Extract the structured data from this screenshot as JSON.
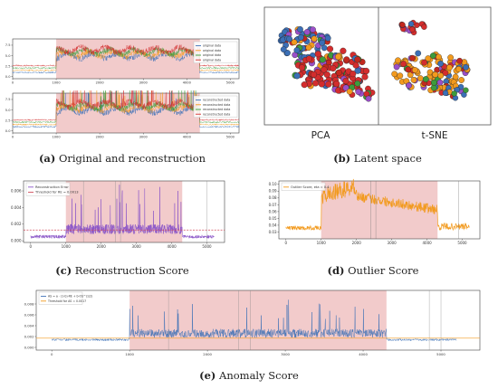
{
  "captions": {
    "a": {
      "letter": "(a)",
      "text": "Original and reconstruction"
    },
    "b": {
      "letter": "(b)",
      "text": "Latent space"
    },
    "c": {
      "letter": "(c)",
      "text": "Reconstruction Score"
    },
    "d": {
      "letter": "(d)",
      "text": "Outlier Score"
    },
    "e": {
      "letter": "(e)",
      "text": "Anomaly Score"
    }
  },
  "colors": {
    "shade": "#e8a0a0",
    "blue": "#3b6fb6",
    "orange": "#f29a1e",
    "green": "#3c9b3c",
    "red": "#d32d2d",
    "purple": "#8a55c8",
    "threshold": "#d04a5a"
  },
  "chart_data": [
    {
      "id": "a-top",
      "type": "line",
      "xlim": [
        0,
        5200
      ],
      "ylim": [
        -0.5,
        9
      ],
      "x_ticks": [
        0,
        1000,
        2000,
        3000,
        4000,
        5000
      ],
      "x_tick_labels": [
        "0",
        "1000",
        "2000",
        "3000",
        "4000",
        "5000"
      ],
      "y_ticks": [
        0,
        2.5,
        5,
        7.5
      ],
      "y_tick_labels": [
        "0.0",
        "2.5",
        "5.0",
        "7.5"
      ],
      "anomaly_span": [
        1000,
        4300
      ],
      "legend": [
        "original data",
        "original data",
        "original data",
        "original data"
      ],
      "legend_position": "top-right"
    },
    {
      "id": "a-bottom",
      "type": "line",
      "xlim": [
        0,
        5200
      ],
      "ylim": [
        -0.5,
        9
      ],
      "x_ticks": [
        0,
        1000,
        2000,
        3000,
        4000,
        5000
      ],
      "x_tick_labels": [
        "0",
        "1000",
        "2000",
        "3000",
        "4000",
        "5000"
      ],
      "y_ticks": [
        0,
        2.5,
        5,
        7.5
      ],
      "y_tick_labels": [
        "0.0",
        "2.5",
        "5.0",
        "7.5"
      ],
      "anomaly_span": [
        1000,
        4300
      ],
      "legend": [
        "reconstructed data",
        "reconstructed data",
        "reconstructed data",
        "reconstructed data"
      ],
      "legend_position": "top-right"
    },
    {
      "id": "b",
      "type": "scatter",
      "subplots": [
        "PCA",
        "t-SNE"
      ]
    },
    {
      "id": "c",
      "type": "line",
      "xlim": [
        -200,
        5500
      ],
      "ylim": [
        -0.0002,
        0.0072
      ],
      "x_ticks": [
        0,
        1000,
        2000,
        3000,
        4000,
        5000
      ],
      "x_tick_labels": [
        "0",
        "1000",
        "2000",
        "3000",
        "4000",
        "5000"
      ],
      "y_ticks": [
        0,
        0.002,
        0.004,
        0.006
      ],
      "y_tick_labels": [
        "0.000",
        "0.002",
        "0.004",
        "0.006"
      ],
      "threshold": 0.0013,
      "anomaly_span": [
        1000,
        4300
      ],
      "legend": [
        "Reconstruction Error",
        "Threshold for RE = 0.0013"
      ],
      "legend_position": "top-left"
    },
    {
      "id": "d",
      "type": "line",
      "xlim": [
        -200,
        5500
      ],
      "ylim": [
        0.02,
        0.105
      ],
      "x_ticks": [
        0,
        1000,
        2000,
        3000,
        4000,
        5000
      ],
      "x_tick_labels": [
        "0",
        "1000",
        "2000",
        "3000",
        "4000",
        "5000"
      ],
      "y_ticks": [
        0.03,
        0.04,
        0.05,
        0.06,
        0.07,
        0.08,
        0.09,
        0.1
      ],
      "y_tick_labels": [
        "0.03",
        "0.04",
        "0.05",
        "0.06",
        "0.07",
        "0.08",
        "0.09",
        "0.10"
      ],
      "anomaly_span": [
        1000,
        4300
      ],
      "legend": [
        "Outlier Score, eta = 0.4"
      ],
      "legend_position": "top-left"
    },
    {
      "id": "e",
      "type": "line",
      "xlim": [
        -200,
        5500
      ],
      "ylim": [
        -0.0005,
        0.0105
      ],
      "x_ticks": [
        0,
        1000,
        2000,
        3000,
        4000,
        5000
      ],
      "x_tick_labels": [
        "0",
        "1000",
        "2000",
        "3000",
        "4000",
        "5000"
      ],
      "y_ticks": [
        0,
        0.002,
        0.004,
        0.006,
        0.008
      ],
      "y_tick_labels": [
        "0.000",
        "0.002",
        "0.004",
        "0.006",
        "0.008"
      ],
      "threshold": 0.0017,
      "anomaly_span": [
        1000,
        4300
      ],
      "legend": [
        "AS = a · (1-b)·RE + b·OS^(1/2)",
        "Threshold for AS = 0.0017"
      ],
      "legend_position": "top-left"
    }
  ]
}
